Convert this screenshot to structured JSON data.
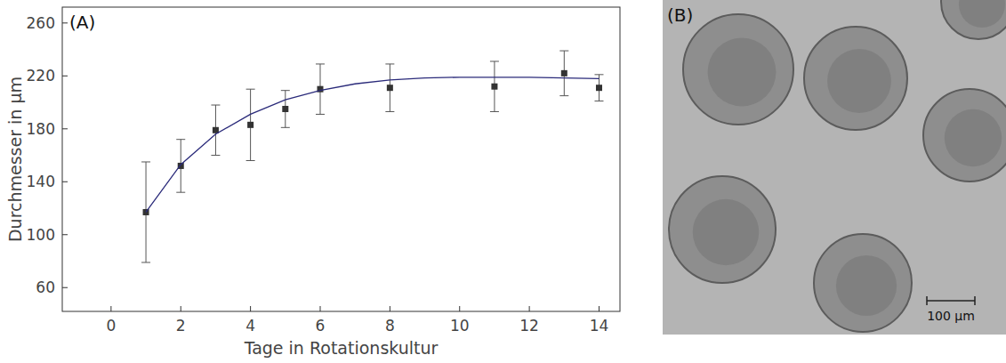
{
  "chart_data": {
    "type": "scatter",
    "title": "(A)",
    "x_label": "Tage in Rotationskultur",
    "y_label": "Durchmesser in µm",
    "x": [
      1,
      2,
      3,
      4,
      5,
      6,
      8,
      11,
      13,
      14
    ],
    "series": [
      {
        "type": "scatter",
        "marker": "square",
        "color": "#333333",
        "values": [
          117,
          152,
          179,
          183,
          195,
          210,
          211,
          212,
          222,
          211
        ],
        "errors": [
          38,
          20,
          19,
          27,
          14,
          19,
          18,
          19,
          17,
          10
        ]
      },
      {
        "type": "line",
        "line_style": "solid",
        "color": "#2a2a7a",
        "x": [
          1,
          2,
          3,
          4,
          5,
          6,
          7,
          8,
          9,
          10,
          11,
          12,
          13,
          14
        ],
        "values": [
          117,
          153,
          176,
          191,
          202,
          209,
          214,
          217,
          218.5,
          219,
          219,
          219,
          218.5,
          218
        ]
      }
    ],
    "xlim": [
      -1.4,
      14.6
    ],
    "xticks": [
      0,
      2,
      4,
      6,
      8,
      10,
      12,
      14
    ],
    "ylim": [
      42,
      272
    ],
    "yticks": [
      60,
      100,
      140,
      180,
      220,
      260
    ],
    "grid": false
  },
  "panel_b": {
    "label": "(B)",
    "scale_bar_label": "100 µm"
  }
}
